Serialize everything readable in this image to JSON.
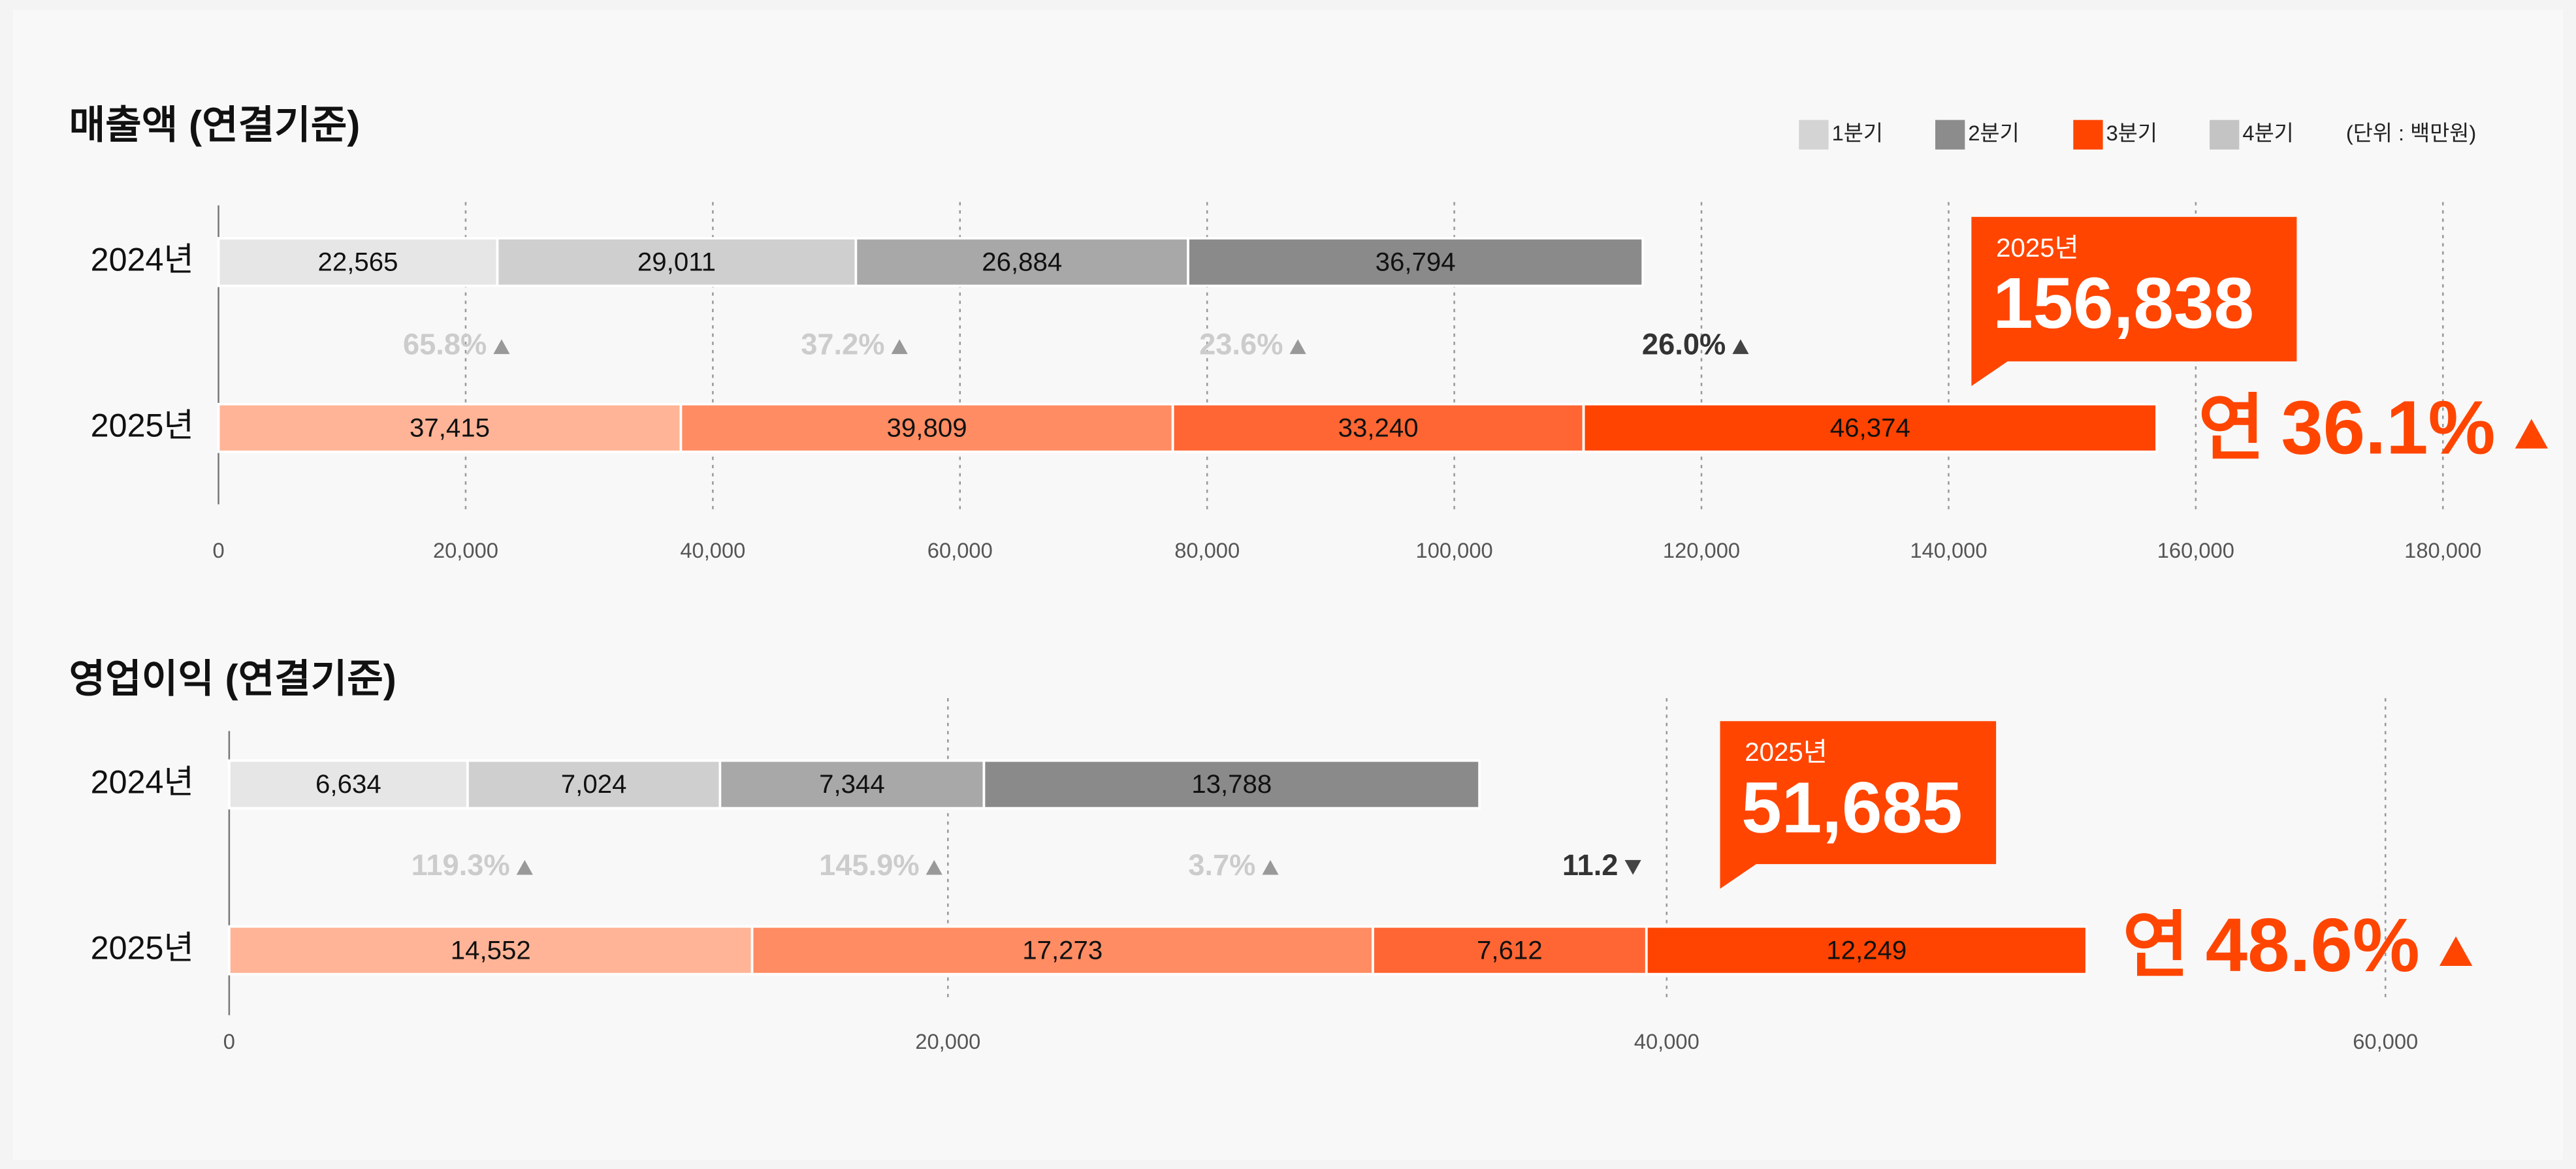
{
  "chart_data": [
    {
      "type": "stacked_bar",
      "orientation": "horizontal",
      "title": "매출액 (연결기준)",
      "unit": "(단위 : 백만원)",
      "categories": [
        "2024년",
        "2025년"
      ],
      "series": [
        {
          "name": "1분기",
          "color": "#d4d4d4",
          "colors": [
            "#e6e6e6",
            "#ffb497"
          ],
          "values": [
            22565,
            37415
          ],
          "value_labels": [
            "22,565",
            "37,415"
          ]
        },
        {
          "name": "2분기",
          "color": "#8c8c8c",
          "colors": [
            "#cfcfcf",
            "#ff8c63"
          ],
          "values": [
            29011,
            39809
          ],
          "value_labels": [
            "29,011",
            "39,809"
          ]
        },
        {
          "name": "3분기",
          "color": "#ff4500",
          "colors": [
            "#a8a8a8",
            "#ff6633"
          ],
          "values": [
            26884,
            33240
          ],
          "value_labels": [
            "26,884",
            "33,240"
          ]
        },
        {
          "name": "4분기",
          "color": "#c4c4c4",
          "colors": [
            "#8a8a8a",
            "#ff4300"
          ],
          "values": [
            36794,
            46374
          ],
          "value_labels": [
            "36,794",
            "46,374"
          ]
        }
      ],
      "growth": {
        "values": [
          65.8,
          37.2,
          23.6,
          26.0
        ],
        "value_labels": [
          "65.8%",
          "37.2%",
          "23.6%",
          "26.0%"
        ],
        "directions": [
          "up",
          "up",
          "up",
          "up"
        ],
        "colors": [
          "#cccccc",
          "#cccccc",
          "#cccccc",
          "#333333"
        ]
      },
      "total": {
        "label": "2025년",
        "value": 156838,
        "value_label": "156,838",
        "color": "#ff4500"
      },
      "yoy": {
        "prefix": "연",
        "value": 36.1,
        "value_label": "36.1%",
        "direction": "up",
        "color": "#ff4500"
      },
      "xlim": [
        0,
        180000
      ],
      "xticks": [
        0,
        {
          "value": 20000,
          "label": "20,000"
        },
        {
          "value": 40000,
          "label": "40,000"
        },
        {
          "value": 60000,
          "label": "60,000"
        },
        {
          "value": 80000,
          "label": "80,000"
        },
        {
          "value": 100000,
          "label": "100,000"
        },
        {
          "value": 120000,
          "label": "120,000"
        },
        {
          "value": 140000,
          "label": "140,000"
        },
        {
          "value": 160000,
          "label": "160,000"
        },
        {
          "value": 180000,
          "label": "180,000"
        }
      ],
      "grid": true,
      "legend": "top-right"
    },
    {
      "type": "stacked_bar",
      "orientation": "horizontal",
      "title": "영업이익 (연결기준)",
      "categories": [
        "2024년",
        "2025년"
      ],
      "series": [
        {
          "name": "1분기",
          "colors": [
            "#e6e6e6",
            "#ffb497"
          ],
          "values": [
            6634,
            14552
          ],
          "value_labels": [
            "6,634",
            "14,552"
          ]
        },
        {
          "name": "2분기",
          "colors": [
            "#cfcfcf",
            "#ff8c63"
          ],
          "values": [
            7024,
            17273
          ],
          "value_labels": [
            "7,024",
            "17,273"
          ]
        },
        {
          "name": "3분기",
          "colors": [
            "#a8a8a8",
            "#ff6633"
          ],
          "values": [
            7344,
            7612
          ],
          "value_labels": [
            "7,344",
            "7,612"
          ]
        },
        {
          "name": "4분기",
          "colors": [
            "#8a8a8a",
            "#ff4300"
          ],
          "values": [
            13788,
            12249
          ],
          "value_labels": [
            "13,788",
            "12,249"
          ]
        }
      ],
      "growth": {
        "values": [
          119.3,
          145.9,
          3.7,
          11.2
        ],
        "value_labels": [
          "119.3%",
          "145.9%",
          "3.7%",
          "11.2"
        ],
        "directions": [
          "up",
          "up",
          "up",
          "down"
        ],
        "colors": [
          "#cccccc",
          "#cccccc",
          "#cccccc",
          "#333333"
        ]
      },
      "total": {
        "label": "2025년",
        "value": 51685,
        "value_label": "51,685",
        "color": "#ff4500"
      },
      "yoy": {
        "prefix": "연",
        "value": 48.6,
        "value_label": "48.6%",
        "direction": "up",
        "color": "#ff4500"
      },
      "xlim": [
        0,
        60000
      ],
      "xticks": [
        0,
        {
          "value": 20000,
          "label": "20,000"
        },
        {
          "value": 40000,
          "label": "40,000"
        },
        {
          "value": 60000,
          "label": "60,000"
        }
      ],
      "grid": true
    }
  ]
}
